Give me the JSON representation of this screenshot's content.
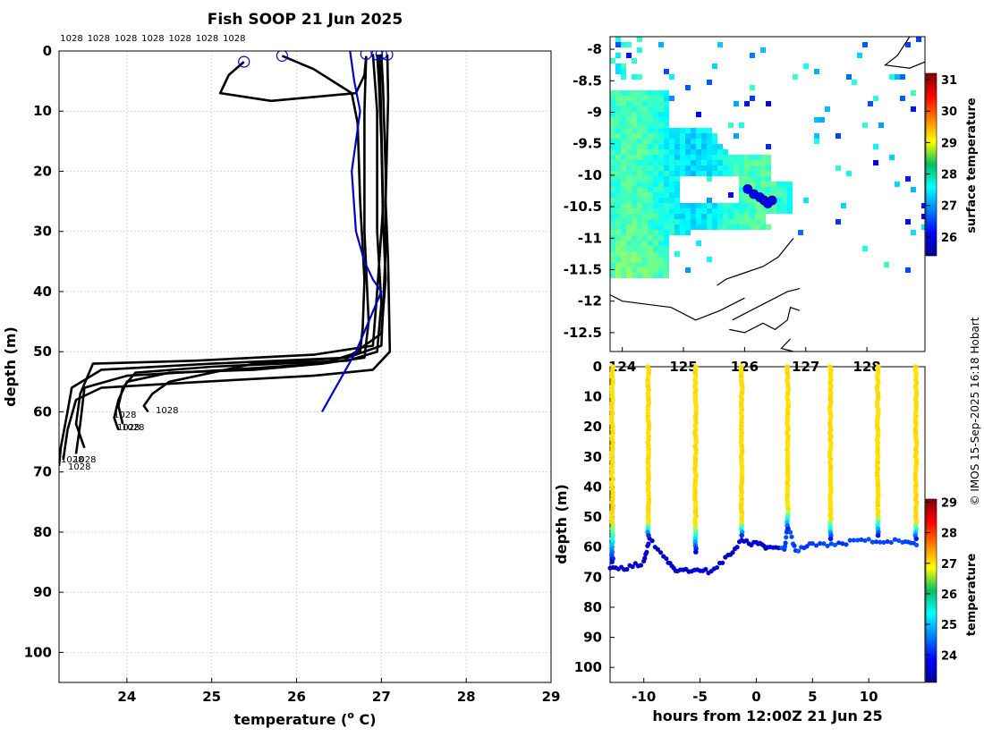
{
  "chart_data": [
    {
      "type": "line",
      "title": "Fish SOOP 21 Jun 2025",
      "xlabel": "temperature (",
      "xlabel_sup": "o",
      "xlabel_end": " C)",
      "ylabel": "depth (m)",
      "xlim": [
        23.2,
        29
      ],
      "ylim": [
        105,
        0
      ],
      "xticks": [
        24,
        25,
        26,
        27,
        28,
        29
      ],
      "yticks": [
        0,
        10,
        20,
        30,
        40,
        50,
        60,
        70,
        80,
        90,
        100
      ],
      "top_ids": [
        "1028",
        "1028",
        "1028",
        "1028",
        "1028",
        "1028",
        "1028"
      ],
      "inline_ids": [
        "1028",
        "1028",
        "1028",
        "1028",
        "1028",
        "1028",
        "1028"
      ],
      "series_color": "#000000",
      "climatology_color": "#0000cc",
      "start_markers": [
        [
          25.38,
          1.8
        ],
        [
          25.83,
          0.8
        ],
        [
          26.82,
          0.5
        ],
        [
          26.95,
          0.6
        ],
        [
          27.0,
          0.5
        ],
        [
          27.07,
          0.6
        ]
      ],
      "climatology": {
        "t": [
          26.63,
          26.68,
          26.75,
          26.65,
          26.7,
          26.8,
          26.9,
          27.0,
          26.7,
          26.3
        ],
        "d": [
          0,
          5,
          10,
          20,
          30,
          35,
          38,
          40,
          50,
          60
        ]
      },
      "profiles": [
        {
          "t": [
            25.38,
            25.2,
            25.1,
            25.7,
            26.7,
            26.8,
            26.82,
            26.8,
            26.8,
            26.85,
            26.8,
            26.3,
            25.5,
            24.5,
            24.0,
            23.9,
            23.85,
            23.9
          ],
          "d": [
            1.8,
            4,
            7,
            8.3,
            7,
            4,
            1,
            10,
            30,
            45,
            51,
            52,
            53,
            53.5,
            55,
            58,
            61,
            63
          ]
        },
        {
          "t": [
            25.83,
            26.2,
            26.65,
            26.72,
            26.75,
            26.8,
            26.78,
            26.75,
            26.3,
            25.2,
            24.0,
            23.5,
            23.45,
            23.4
          ],
          "d": [
            0.8,
            3,
            7,
            12,
            25,
            38,
            46,
            50,
            52,
            53,
            54,
            56,
            62,
            67
          ]
        },
        {
          "t": [
            26.95,
            26.97,
            27.0,
            27.02,
            27.05,
            27.0,
            26.6,
            25.0,
            23.7,
            23.35,
            23.3,
            23.22,
            23.2
          ],
          "d": [
            0.6,
            5,
            15,
            28,
            38,
            47,
            51,
            52,
            53,
            56,
            60,
            66,
            69
          ]
        },
        {
          "t": [
            27.0,
            27.02,
            27.05,
            27.05,
            27.0,
            26.6,
            25.5,
            24.5,
            24.3,
            24.2,
            24.25
          ],
          "d": [
            0.5,
            6,
            20,
            33,
            49,
            51,
            52,
            55,
            57,
            59,
            60
          ]
        },
        {
          "t": [
            27.07,
            27.08,
            27.05,
            27.08,
            27.1,
            26.9,
            26.2,
            24.9,
            23.7,
            23.4,
            23.3,
            23.25
          ],
          "d": [
            0.6,
            8,
            25,
            35,
            50,
            53,
            54,
            55,
            56,
            58,
            63,
            68
          ]
        },
        {
          "t": [
            26.9,
            26.95,
            26.95,
            27.0,
            26.95,
            26.6,
            25.0,
            24.1,
            23.95,
            23.9,
            23.95
          ],
          "d": [
            0.5,
            10,
            30,
            42,
            50,
            51.5,
            52.5,
            53.5,
            56,
            59,
            62
          ]
        },
        {
          "t": [
            26.98,
            27.0,
            27.02,
            26.95,
            26.9,
            26.2,
            24.8,
            23.6,
            23.45,
            23.4,
            23.5
          ],
          "d": [
            0.6,
            12,
            26,
            40,
            49,
            50.5,
            51.5,
            52,
            57,
            62,
            66
          ]
        }
      ]
    },
    {
      "type": "heatmap",
      "subtype": "map",
      "ylim": [
        -12.8,
        -7.8
      ],
      "xlim": [
        123.8,
        128.95
      ],
      "yticks": [
        "-8",
        "-8.5",
        "-9",
        "-9.5",
        "-10",
        "-10.5",
        "-11",
        "-11.5",
        "-12",
        "-12.5"
      ],
      "xticks": [
        "124",
        "125",
        "126",
        "127",
        "128"
      ],
      "colorbar_label": "surface temperature",
      "colorbar_ticks": [
        "31",
        "30",
        "29",
        "28",
        "27",
        "26"
      ],
      "colorbar_range": [
        25.4,
        31.2
      ],
      "track_points": [
        [
          126.05,
          -10.22
        ],
        [
          126.15,
          -10.3
        ],
        [
          126.25,
          -10.35
        ],
        [
          126.32,
          -10.4
        ],
        [
          126.38,
          -10.45
        ],
        [
          126.45,
          -10.4
        ]
      ],
      "track_color": "#0000ff"
    },
    {
      "type": "scatter",
      "xlabel": "hours from 12:00Z 21 Jun 25",
      "ylabel": "depth (m)",
      "xlim": [
        -13,
        15
      ],
      "ylim": [
        105,
        0
      ],
      "xticks": [
        "-10",
        "-5",
        "0",
        "5",
        "10"
      ],
      "xtick_values": [
        -10,
        -5,
        0,
        5,
        10
      ],
      "yticks": [
        "0",
        "10",
        "20",
        "30",
        "40",
        "50",
        "60",
        "70",
        "80",
        "90",
        "100"
      ],
      "profile_times": [
        -12.8,
        -9.6,
        -5.4,
        -1.3,
        2.8,
        6.6,
        10.8,
        14.2
      ],
      "mixed_layer_depth": [
        52,
        52,
        53,
        52,
        48,
        51,
        50,
        52
      ],
      "bottom_depth": [
        66,
        57,
        62,
        57,
        55,
        58,
        57,
        58
      ],
      "bottom_track": {
        "t": [
          -13,
          -11.5,
          -10,
          -9.5,
          -8,
          -7,
          -5.5,
          -4,
          -2.5,
          -1.3,
          0,
          1,
          2.5,
          2.8,
          3.5,
          5,
          7,
          9,
          11,
          13,
          14.5
        ],
        "d": [
          67,
          67,
          65,
          57,
          64,
          68,
          68,
          68,
          63,
          58,
          59,
          60,
          61,
          53,
          61,
          59,
          59,
          58,
          58,
          58,
          60
        ]
      },
      "colorbar_label": "temperature",
      "colorbar_ticks": [
        "29",
        "28",
        "27",
        "26",
        "25",
        "24"
      ],
      "colorbar_range": [
        23.1,
        29.1
      ]
    }
  ],
  "side_credit": "© IMOS 15-Sep-2025 16:18 Hobart"
}
